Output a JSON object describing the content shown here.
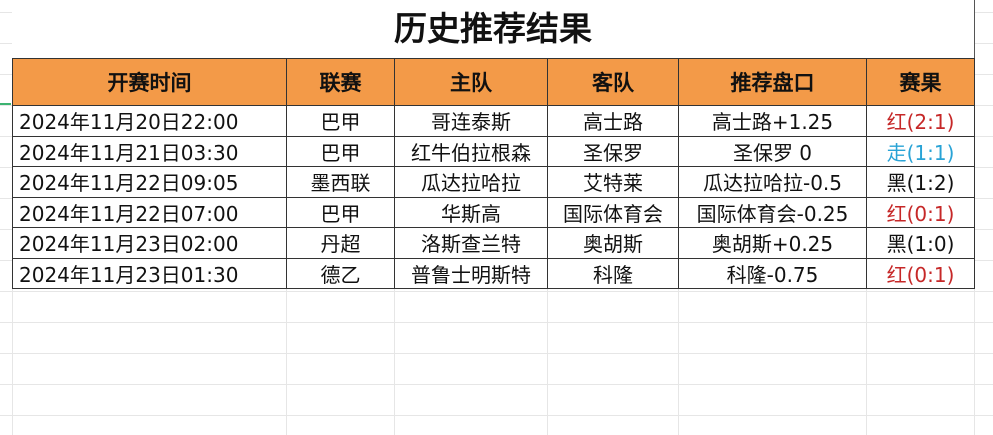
{
  "title": "历史推荐结果",
  "columns": [
    "开赛时间",
    "联赛",
    "主队",
    "客队",
    "推荐盘口",
    "赛果"
  ],
  "rows": [
    {
      "time": "2024年11月20日22:00",
      "league": "巴甲",
      "home": "哥连泰斯",
      "away": "高士路",
      "pick": "高士路+1.25",
      "result": "红(2:1)",
      "result_color": "#c62828"
    },
    {
      "time": "2024年11月21日03:30",
      "league": "巴甲",
      "home": "红牛伯拉根森",
      "away": "圣保罗",
      "pick": "圣保罗 0",
      "result": "走(1:1)",
      "result_color": "#29a3d6"
    },
    {
      "time": "2024年11月22日09:05",
      "league": "墨西联",
      "home": "瓜达拉哈拉",
      "away": "艾特莱",
      "pick": "瓜达拉哈拉-0.5",
      "result": "黑(1:2)",
      "result_color": "#111111"
    },
    {
      "time": "2024年11月22日07:00",
      "league": "巴甲",
      "home": "华斯高",
      "away": "国际体育会",
      "pick": "国际体育会-0.25",
      "result": "红(0:1)",
      "result_color": "#c62828"
    },
    {
      "time": "2024年11月23日02:00",
      "league": "丹超",
      "home": "洛斯查兰特",
      "away": "奥胡斯",
      "pick": "奥胡斯+0.25",
      "result": "黑(1:0)",
      "result_color": "#111111"
    },
    {
      "time": "2024年11月23日01:30",
      "league": "德乙",
      "home": "普鲁士明斯特",
      "away": "科隆",
      "pick": "科隆-0.75",
      "result": "红(0:1)",
      "result_color": "#c62828"
    }
  ],
  "colors": {
    "header_bg": "#f39a48",
    "selection": "#3cb371"
  }
}
